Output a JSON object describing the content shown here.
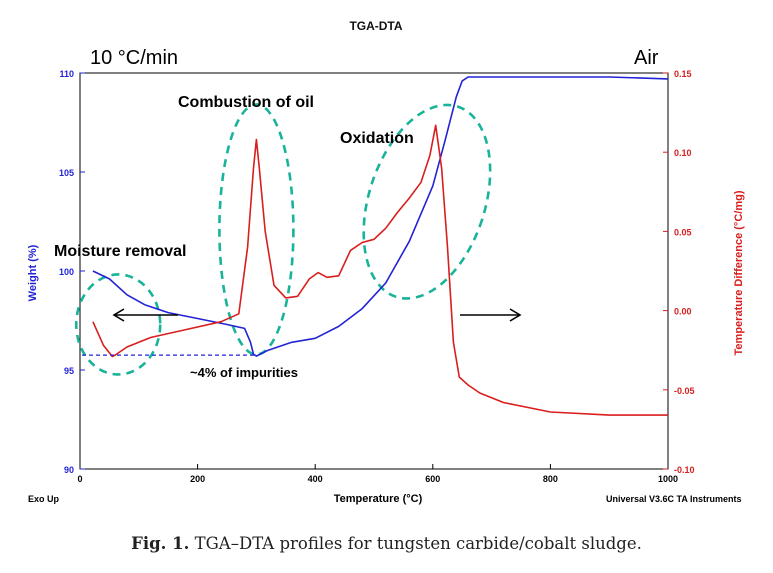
{
  "chart_data": {
    "type": "line",
    "title": "TGA-DTA",
    "xlabel": "Temperature (°C)",
    "ylabel_left": "Weight (%)",
    "ylabel_right": "Temperature Difference (°C/mg)",
    "xlim": [
      0,
      1000
    ],
    "ylim_left": [
      90,
      110
    ],
    "ylim_right": [
      -0.1,
      0.15
    ],
    "x_ticks": [
      "0",
      "200",
      "400",
      "600",
      "800",
      "1000"
    ],
    "y_left_ticks": [
      "90",
      "95",
      "100",
      "105",
      "110"
    ],
    "y_right_ticks": [
      "-0.10",
      "-0.05",
      "0.00",
      "0.05",
      "0.10",
      "0.15"
    ],
    "grid": false,
    "colors": {
      "weight": "#2323d6",
      "dta": "#d91e1e",
      "ellipse": "#19b39a",
      "axis_left": "#2323d6",
      "axis_right": "#d91e1e"
    },
    "series": [
      {
        "axis": "left",
        "color": "#2323d6",
        "x": [
          22,
          50,
          80,
          110,
          150,
          200,
          250,
          280,
          290,
          295,
          300,
          320,
          360,
          400,
          440,
          480,
          520,
          560,
          600,
          620,
          640,
          650,
          660,
          700,
          800,
          900,
          1000
        ],
        "values": [
          100,
          99.6,
          98.8,
          98.3,
          97.9,
          97.6,
          97.3,
          97.1,
          96.4,
          95.8,
          95.7,
          96.0,
          96.4,
          96.6,
          97.2,
          98.1,
          99.4,
          101.5,
          104.3,
          106.5,
          108.8,
          109.6,
          109.8,
          109.8,
          109.8,
          109.8,
          109.7
        ]
      },
      {
        "axis": "right",
        "color": "#d91e1e",
        "x": [
          22,
          40,
          55,
          60,
          80,
          120,
          180,
          240,
          270,
          285,
          295,
          300,
          305,
          315,
          330,
          350,
          370,
          390,
          405,
          420,
          440,
          460,
          480,
          500,
          520,
          540,
          560,
          580,
          595,
          605,
          615,
          625,
          635,
          645,
          660,
          680,
          720,
          800,
          900,
          1000
        ],
        "values": [
          -0.007,
          -0.022,
          -0.029,
          -0.028,
          -0.023,
          -0.017,
          -0.012,
          -0.007,
          -0.002,
          0.04,
          0.09,
          0.108,
          0.09,
          0.05,
          0.016,
          0.008,
          0.009,
          0.02,
          0.024,
          0.021,
          0.022,
          0.038,
          0.043,
          0.045,
          0.052,
          0.062,
          0.071,
          0.081,
          0.098,
          0.117,
          0.09,
          0.04,
          -0.02,
          -0.042,
          -0.047,
          -0.052,
          -0.058,
          -0.064,
          -0.066,
          -0.066
        ]
      }
    ],
    "annotations": {
      "rate": "10 °C/min",
      "atmosphere": "Air",
      "moisture": "Moisture removal",
      "combustion": "Combustion of oil",
      "oxidation": "Oxidation",
      "impurities": "~4% of impurities",
      "exo": "Exo Up",
      "instrument": "Universal V3.6C TA Instruments"
    }
  },
  "caption": {
    "label": "Fig. 1.",
    "text": "TGA–DTA profiles for tungsten carbide/cobalt sludge."
  }
}
